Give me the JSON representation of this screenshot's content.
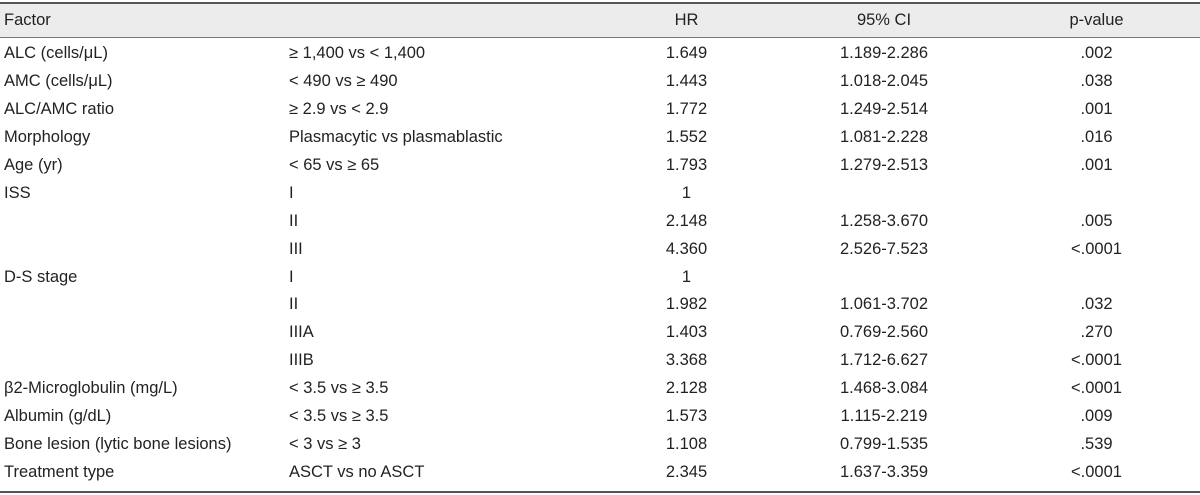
{
  "header": {
    "factor": "Factor",
    "comparison": "",
    "hr": "HR",
    "ci": "95% CI",
    "p": "p-value"
  },
  "rows": [
    {
      "factor": "ALC (cells/μL)",
      "comparison": "≥ 1,400 vs < 1,400",
      "hr": "1.649",
      "ci": "1.189-2.286",
      "p": ".002"
    },
    {
      "factor": "AMC (cells/μL)",
      "comparison": "< 490 vs ≥ 490",
      "hr": "1.443",
      "ci": "1.018-2.045",
      "p": ".038"
    },
    {
      "factor": "ALC/AMC ratio",
      "comparison": "≥ 2.9 vs < 2.9",
      "hr": "1.772",
      "ci": "1.249-2.514",
      "p": ".001"
    },
    {
      "factor": "Morphology",
      "comparison": "Plasmacytic vs plasmablastic",
      "hr": "1.552",
      "ci": "1.081-2.228",
      "p": ".016"
    },
    {
      "factor": "Age (yr)",
      "comparison": "< 65 vs ≥ 65",
      "hr": "1.793",
      "ci": "1.279-2.513",
      "p": ".001"
    },
    {
      "factor": "ISS",
      "comparison": "I",
      "hr": "1",
      "ci": "",
      "p": ""
    },
    {
      "factor": "",
      "comparison": "II",
      "hr": "2.148",
      "ci": "1.258-3.670",
      "p": ".005"
    },
    {
      "factor": "",
      "comparison": "III",
      "hr": "4.360",
      "ci": "2.526-7.523",
      "p": "<.0001"
    },
    {
      "factor": "D-S stage",
      "comparison": "I",
      "hr": "1",
      "ci": "",
      "p": ""
    },
    {
      "factor": "",
      "comparison": "II",
      "hr": "1.982",
      "ci": "1.061-3.702",
      "p": ".032"
    },
    {
      "factor": "",
      "comparison": "IIIA",
      "hr": "1.403",
      "ci": "0.769-2.560",
      "p": ".270"
    },
    {
      "factor": "",
      "comparison": "IIIB",
      "hr": "3.368",
      "ci": "1.712-6.627",
      "p": "<.0001"
    },
    {
      "factor": "β2-Microglobulin (mg/L)",
      "comparison": "< 3.5 vs ≥ 3.5",
      "hr": "2.128",
      "ci": "1.468-3.084",
      "p": "<.0001"
    },
    {
      "factor": "Albumin (g/dL)",
      "comparison": "< 3.5 vs ≥ 3.5",
      "hr": "1.573",
      "ci": "1.115-2.219",
      "p": ".009"
    },
    {
      "factor": "Bone lesion (lytic bone lesions)",
      "comparison": "< 3 vs ≥ 3",
      "hr": "1.108",
      "ci": "0.799-1.535",
      "p": ".539"
    },
    {
      "factor": "Treatment type",
      "comparison": "ASCT vs no ASCT",
      "hr": "2.345",
      "ci": "1.637-3.359",
      "p": "<.0001"
    }
  ]
}
